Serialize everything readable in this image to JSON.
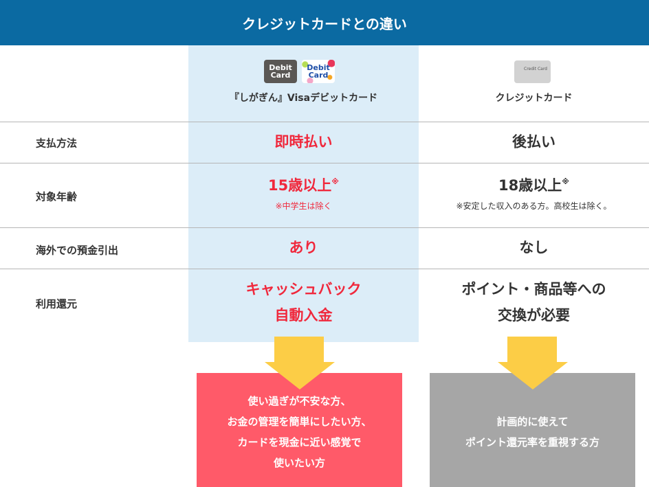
{
  "title": "クレジットカードとの違い",
  "columns": {
    "debit": {
      "name": "『しがぎん』Visaデビットカード",
      "icon_text_1": "Debit Card",
      "icon_text_2": "Debit Card"
    },
    "credit": {
      "name": "クレジットカード",
      "icon_text": "Credit Card"
    }
  },
  "rows": [
    {
      "label": "支払方法",
      "debit": "即時払い",
      "credit": "後払い"
    },
    {
      "label": "対象年齢",
      "debit": "15歳以上",
      "debit_mark": "※",
      "debit_note": "※中学生は除く",
      "credit": "18歳以上",
      "credit_mark": "※",
      "credit_note": "※安定した収入のある方。高校生は除く。"
    },
    {
      "label": "海外での預金引出",
      "debit": "あり",
      "credit": "なし"
    },
    {
      "label": "利用還元",
      "debit_1": "キャッシュバック",
      "debit_2": "自動入金",
      "credit_1": "ポイント・商品等への",
      "credit_2": "交換が必要"
    }
  ],
  "recommend": {
    "debit": [
      "使い過ぎが不安な方、",
      "お金の管理を簡単にしたい方、",
      "カードを現金に近い感覚で",
      "使いたい方"
    ],
    "credit": [
      "計画的に使えて",
      "ポイント還元率を重視する方"
    ]
  },
  "colors": {
    "header": "#0b6aa2",
    "accent_red": "#f0283c",
    "debit_bg": "#dcedf8",
    "arrow": "#fccd46",
    "debit_box": "#ff5a69",
    "credit_box": "#a6a6a6"
  }
}
